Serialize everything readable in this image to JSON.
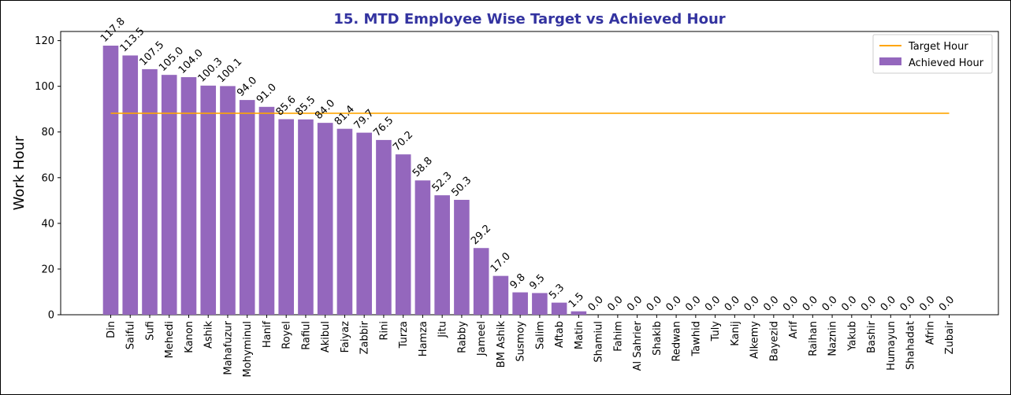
{
  "chart_data": {
    "type": "bar",
    "title": "15. MTD Employee Wise Target vs Achieved Hour",
    "ylabel": "Work Hour",
    "xlabel": "",
    "ylim": [
      0,
      124
    ],
    "yticks": [
      0,
      20,
      40,
      60,
      80,
      100,
      120
    ],
    "grid": false,
    "legend_position": "top-right",
    "categories": [
      "Din",
      "Saiful",
      "Sufi",
      "Mehedi",
      "Kanon",
      "Ashik",
      "Mahafuzur",
      "Mohyminul",
      "Hanif",
      "Royel",
      "Rafiul",
      "Akibul",
      "Faiyaz",
      "Zabbir",
      "Rini",
      "Turza",
      "Hamza",
      "Jitu",
      "Rabby",
      "Jameel",
      "BM Ashik",
      "Susmoy",
      "Salim",
      "Aftab",
      "Matin",
      "Shamiul",
      "Fahim",
      "Al Sahrier",
      "Shakib",
      "Redwan",
      "Tawhid",
      "Tuly",
      "Kanij",
      "Alkemy",
      "Bayezid",
      "Arif",
      "Raihan",
      "Naznin",
      "Yakub",
      "Bashir",
      "Humayun",
      "Shahadat",
      "Afrin",
      "Zubair"
    ],
    "series": [
      {
        "name": "Achieved Hour",
        "kind": "bar",
        "color": "#9467bd",
        "values": [
          117.8,
          113.5,
          107.5,
          105.0,
          104.0,
          100.3,
          100.1,
          94.0,
          91.0,
          85.6,
          85.5,
          84.0,
          81.4,
          79.7,
          76.5,
          70.2,
          58.8,
          52.3,
          50.3,
          29.2,
          17.0,
          9.8,
          9.5,
          5.3,
          1.5,
          0.0,
          0.0,
          0.0,
          0.0,
          0.0,
          0.0,
          0.0,
          0.0,
          0.0,
          0.0,
          0.0,
          0.0,
          0.0,
          0.0,
          0.0,
          0.0,
          0.0,
          0.0,
          0.0
        ]
      },
      {
        "name": "Target Hour",
        "kind": "line",
        "color": "#ffa500",
        "value": 88.2
      }
    ],
    "data_labels": [
      "117.8",
      "113.5",
      "107.5",
      "105.0",
      "104.0",
      "100.3",
      "100.1",
      "94.0",
      "91.0",
      "85.6",
      "85.5",
      "84.0",
      "81.4",
      "79.7",
      "76.5",
      "70.2",
      "58.8",
      "52.3",
      "50.3",
      "29.2",
      "17.0",
      "9.8",
      "9.5",
      "5.3",
      "1.5",
      "0.0",
      "0.0",
      "0.0",
      "0.0",
      "0.0",
      "0.0",
      "0.0",
      "0.0",
      "0.0",
      "0.0",
      "0.0",
      "0.0",
      "0.0",
      "0.0",
      "0.0",
      "0.0",
      "0.0",
      "0.0",
      "0.0"
    ]
  }
}
